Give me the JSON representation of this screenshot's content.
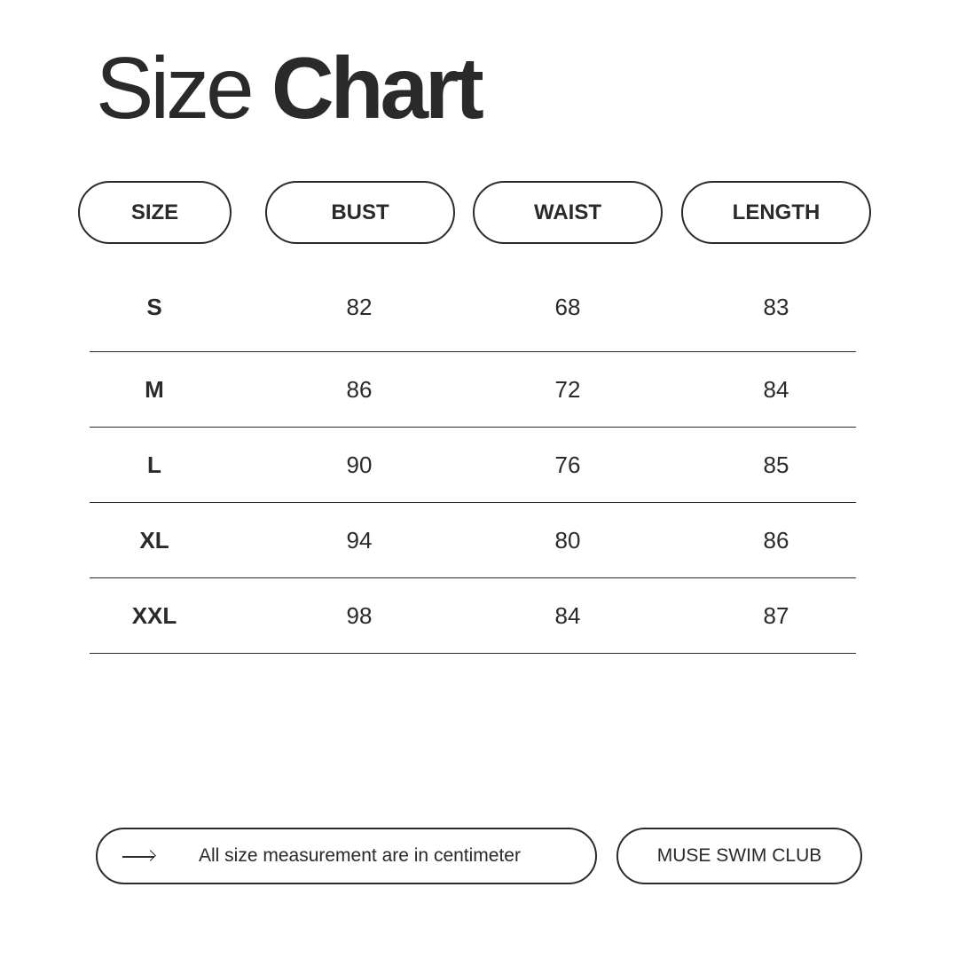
{
  "title": {
    "light": "Size",
    "bold": "Chart"
  },
  "headers": [
    "SIZE",
    "BUST",
    "WAIST",
    "LENGTH"
  ],
  "rows": [
    [
      "S",
      "82",
      "68",
      "83"
    ],
    [
      "M",
      "86",
      "72",
      "84"
    ],
    [
      "L",
      "90",
      "76",
      "85"
    ],
    [
      "XL",
      "94",
      "80",
      "86"
    ],
    [
      "XXL",
      "98",
      "84",
      "87"
    ]
  ],
  "footer": {
    "note_icon": "arrow-right-icon",
    "note": "All size measurement are in centimeter",
    "brand": "MUSE SWIM CLUB"
  }
}
